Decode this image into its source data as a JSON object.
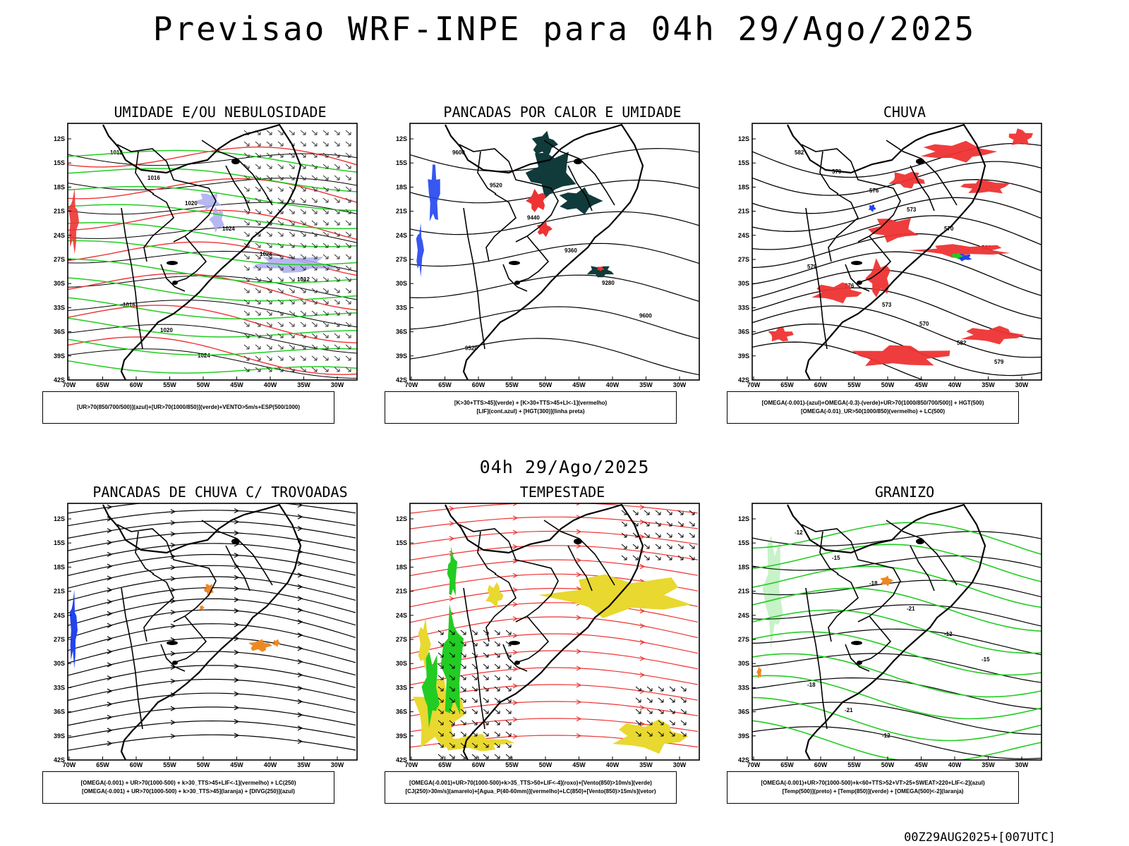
{
  "title": "Previsao WRF-INPE  para 04h 29/Ago/2025",
  "row_date": "04h 29/Ago/2025",
  "footer": "00Z29AUG2025+[007UTC]",
  "axes": {
    "lat": [
      "12S",
      "15S",
      "18S",
      "21S",
      "24S",
      "27S",
      "30S",
      "33S",
      "36S",
      "39S",
      "42S"
    ],
    "lon": [
      "70W",
      "65W",
      "60W",
      "55W",
      "50W",
      "45W",
      "40W",
      "35W",
      "30W"
    ]
  },
  "colors": {
    "green": "#22cc22",
    "red": "#ee3333",
    "blue": "#2244ee",
    "lavender": "#aaaaee",
    "darkteal": "#113a3a",
    "orange": "#ee8822",
    "yellow": "#e8d830"
  },
  "panels": [
    {
      "title": "UMIDADE E/OU NEBULOSIDADE",
      "legend": [
        "[UR>70(850/700/500)](azul)+[UR>70(1000/850)](verde)+VENTO>5m/s+ESP(500/1000)"
      ],
      "labels": [
        "1012",
        "1016",
        "1020",
        "1024",
        "1028"
      ]
    },
    {
      "title": "PANCADAS POR CALOR E UMIDADE",
      "legend": [
        "[K>30+TTS>45](verde) + [K>30+TTS>45+LI<-1](vermelho)",
        "[LIF](cont.azul) + [HGT(300)](linha preta)"
      ],
      "labels": [
        "9600",
        "9520",
        "9440",
        "9360",
        "9280"
      ]
    },
    {
      "title": "CHUVA",
      "legend": [
        "[OMEGA(-0.001)-(azul)+OMEGA(-0.3)-(verde)+UR>70(1000/850/700/500)] + HGT(500)",
        "[OMEGA(-0.01)_UR>50(1000/850)(vermelho) + LC(500)"
      ],
      "labels": [
        "582",
        "579",
        "576",
        "573",
        "570"
      ]
    },
    {
      "title": "PANCADAS DE CHUVA C/ TROVOADAS",
      "legend": [
        "[OMEGA(-0.001) + UR>70(1000-500) + k>30_TTS>45+LIF<-1](vermelho) + LC(250)",
        "[OMEGA(-0.001) + UR>70(1000-500) + k>30_TTS>45](laranja) + [DIVG(250)](azul)"
      ],
      "labels": []
    },
    {
      "title": "TEMPESTADE",
      "legend": [
        "[OMEGA(-0.001)+UR>70(1000-500)+k>35_TTS>50+LIF<-4](roxo)+[Vento(850)>10m/s](verde)",
        "[CJ(250)>30m/s](amarelo)+[Agua_P(40-60mm)](vermelho)+LC(850)+[Vento(850)>15m/s](vetor)"
      ],
      "labels": []
    },
    {
      "title": "GRANIZO",
      "legend": [
        "[OMEGA(-0.001)+UR>70(1000-500)+k<60+TTS>52+VT>25+SWEAT>220+LIF<-2](azul)",
        "[Temp(500)](preto) + [Temp(850)](verde) + [OMEGA(500)<-2](laranja)"
      ],
      "labels": [
        "-12",
        "-15",
        "-18",
        "-21"
      ]
    }
  ]
}
